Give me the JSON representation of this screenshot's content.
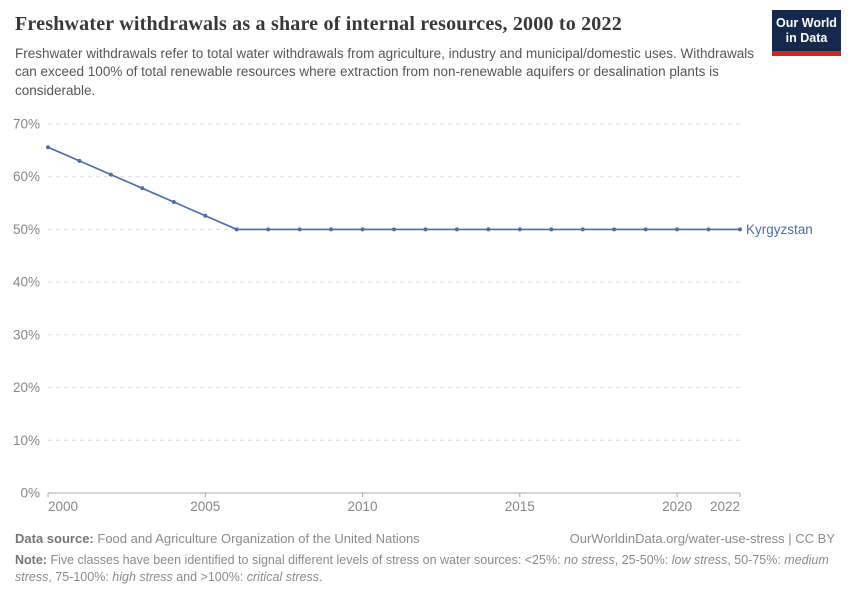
{
  "header": {
    "title": "Freshwater withdrawals as a share of internal resources, 2000 to 2022",
    "subtitle": "Freshwater withdrawals refer to total water withdrawals from agriculture, industry and municipal/domestic uses. Withdrawals can exceed 100% of total renewable resources where extraction from non-renewable aquifers or desalination plants is considerable.",
    "logo": {
      "line1": "Our World",
      "line2": "in Data",
      "bg_color": "#15294C",
      "accent_color": "#D0271F"
    }
  },
  "chart_data": {
    "type": "line",
    "title": "Freshwater withdrawals as a share of internal resources, 2000 to 2022",
    "xlabel": "",
    "ylabel": "",
    "xlim": [
      2000,
      2022
    ],
    "ylim": [
      0,
      70
    ],
    "x_ticks": [
      2000,
      2005,
      2010,
      2015,
      2020,
      2022
    ],
    "y_ticks": [
      0,
      10,
      20,
      30,
      40,
      50,
      60,
      70
    ],
    "y_tick_suffix": "%",
    "grid": "horizontal-dashed",
    "legend_position": "right-of-line-end",
    "series": [
      {
        "name": "Kyrgyzstan",
        "color": "#4C6EA8",
        "x": [
          2000,
          2001,
          2002,
          2003,
          2004,
          2005,
          2006,
          2007,
          2008,
          2009,
          2010,
          2011,
          2012,
          2013,
          2014,
          2015,
          2016,
          2017,
          2018,
          2019,
          2020,
          2021,
          2022
        ],
        "values": [
          65.6,
          63.0,
          60.4,
          57.8,
          55.2,
          52.6,
          50.0,
          50.0,
          50.0,
          50.0,
          50.0,
          50.0,
          50.0,
          50.0,
          50.0,
          50.0,
          50.0,
          50.0,
          50.0,
          50.0,
          50.0,
          50.0,
          50.0
        ]
      }
    ]
  },
  "footer": {
    "source_label": "Data source:",
    "source_text": "Food and Agriculture Organization of the United Nations",
    "link_text": "OurWorldinData.org/water-use-stress | CC BY",
    "note_label": "Note:",
    "note_segments": [
      {
        "text": "Five classes have been identified to signal different levels of stress on water sources: <25%: ",
        "italic": false
      },
      {
        "text": "no stress",
        "italic": true
      },
      {
        "text": ", 25-50%: ",
        "italic": false
      },
      {
        "text": "low stress",
        "italic": true
      },
      {
        "text": ", 50-75%: ",
        "italic": false
      },
      {
        "text": "medium stress",
        "italic": true
      },
      {
        "text": ", 75-100%: ",
        "italic": false
      },
      {
        "text": "high stress",
        "italic": true
      },
      {
        "text": " and >100%: ",
        "italic": false
      },
      {
        "text": "critical stress",
        "italic": true
      },
      {
        "text": ".",
        "italic": false
      }
    ]
  }
}
